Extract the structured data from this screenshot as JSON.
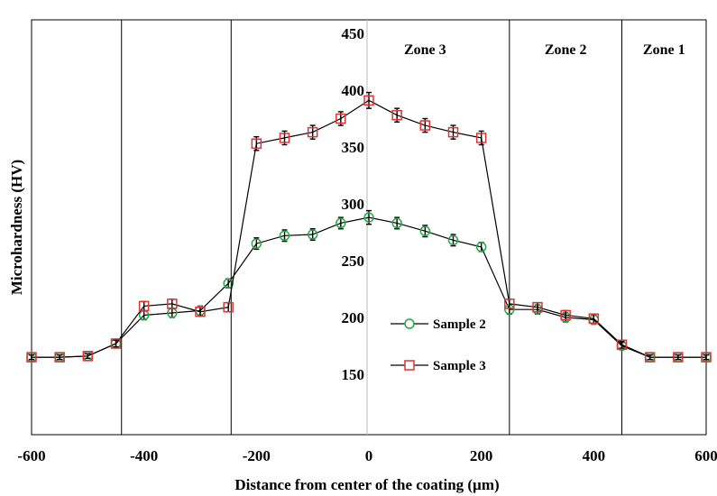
{
  "chart_data": {
    "type": "line",
    "title": "",
    "xlabel": "Distance from center of the coating (µm)",
    "ylabel": "Microhardness (HV)",
    "xlim": [
      -600,
      600
    ],
    "ylim": [
      100,
      450
    ],
    "x_ticks": [
      "-600",
      "-400",
      "-200",
      "0",
      "200",
      "400",
      "600"
    ],
    "y_ticks": [
      "150",
      "200",
      "250",
      "300",
      "350",
      "400",
      "450"
    ],
    "grid": false,
    "legend_position": "center-right",
    "zone_boundaries": [
      -440,
      -245,
      250,
      450
    ],
    "zone_labels": [
      {
        "label": "Zone 3",
        "x": 100
      },
      {
        "label": "Zone 2",
        "x": 350
      },
      {
        "label": "Zone 1",
        "x": 525
      }
    ],
    "series": [
      {
        "name": "Sample 2",
        "color": "#22aa44",
        "marker": "circle",
        "x": [
          -600,
          -550,
          -500,
          -450,
          -400,
          -350,
          -300,
          -250,
          -200,
          -150,
          -100,
          -50,
          0,
          50,
          100,
          150,
          200,
          250,
          300,
          350,
          400,
          450,
          500,
          550,
          600
        ],
        "y": [
          165,
          165,
          166,
          177,
          202,
          204,
          206,
          230,
          265,
          272,
          273,
          283,
          288,
          283,
          276,
          268,
          262,
          207,
          207,
          200,
          198,
          175,
          165,
          165,
          165
        ],
        "err": [
          2,
          2,
          2,
          3,
          4,
          4,
          4,
          4,
          5,
          5,
          5,
          5,
          6,
          5,
          5,
          5,
          4,
          4,
          4,
          4,
          4,
          3,
          2,
          2,
          2
        ]
      },
      {
        "name": "Sample 3",
        "color": "#dd3333",
        "marker": "square",
        "x": [
          -600,
          -550,
          -500,
          -450,
          -400,
          -350,
          -300,
          -250,
          -200,
          -150,
          -100,
          -50,
          0,
          50,
          100,
          150,
          200,
          250,
          300,
          350,
          400,
          450,
          500,
          550,
          600
        ],
        "y": [
          165,
          165,
          166,
          177,
          210,
          212,
          205,
          209,
          353,
          358,
          363,
          375,
          391,
          378,
          369,
          363,
          358,
          212,
          209,
          202,
          199,
          176,
          165,
          165,
          165
        ],
        "err": [
          2,
          2,
          2,
          3,
          4,
          4,
          4,
          4,
          6,
          6,
          6,
          6,
          7,
          6,
          6,
          6,
          6,
          4,
          4,
          4,
          4,
          3,
          2,
          2,
          2
        ]
      }
    ]
  }
}
